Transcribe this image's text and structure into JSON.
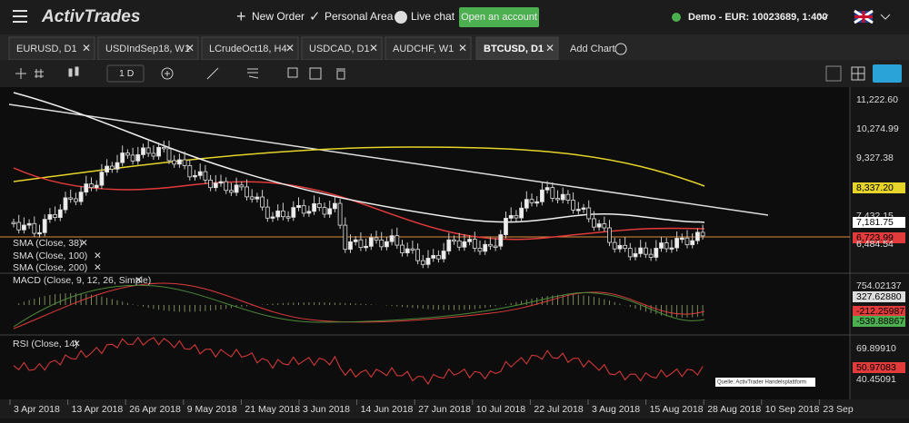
{
  "header": {
    "logo": "ActivTrades",
    "new_order": "New Order",
    "personal_area": "Personal Area",
    "live_chat": "Live chat",
    "open_account": "Open an account",
    "account": "Demo - EUR: 10023689, 1:400"
  },
  "tabs": [
    "EURUSD, D1",
    "USDIndSep18, W1",
    "LCrudeOct18, H4",
    "USDCAD, D1",
    "AUDCHF, W1",
    "BTCUSD, D1"
  ],
  "add_chart": "Add Chart",
  "toolbar": {
    "interval": "1 D"
  },
  "price_axis": [
    "11,222.60",
    "10,274.99",
    "9,327.38",
    "8,337.20",
    "7,432.15",
    "7,181.75",
    "6,723.99",
    "6,484.54"
  ],
  "indicators": [
    "SMA (Close, 38)",
    "SMA (Close, 100)",
    "SMA (Close, 200)"
  ],
  "macd": {
    "label": "MACD (Close, 9, 12, 26, Simple)",
    "axis": [
      "754.02137",
      "327.62880",
      "-212.25987",
      "-539.88867"
    ]
  },
  "rsi": {
    "label": "RSI (Close, 14)",
    "axis": [
      "69.89910",
      "50.97083",
      "40.45091"
    ]
  },
  "watermark": "Quelle: ActivTrader Handelsplattform",
  "dates": [
    "3 Apr 2018",
    "13 Apr 2018",
    "26 Apr 2018",
    "9 May 2018",
    "21 May 2018",
    "3 Jun 2018",
    "14 Jun 2018",
    "27 Jun 2018",
    "10 Jul 2018",
    "22 Jul 2018",
    "3 Aug 2018",
    "15 Aug 2018",
    "28 Aug 2018",
    "10 Sep 2018",
    "23 Sep"
  ]
}
